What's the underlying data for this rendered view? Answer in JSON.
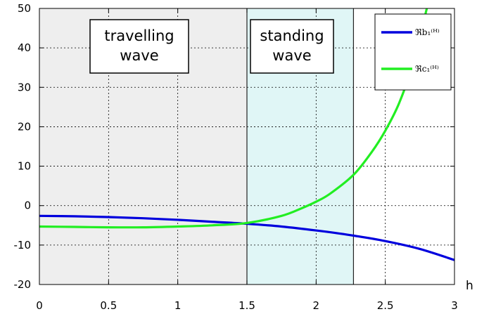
{
  "chart_data": {
    "type": "line",
    "xlabel": "h",
    "ylabel": "",
    "xlim": [
      0,
      3
    ],
    "ylim": [
      -20,
      50
    ],
    "xticks": [
      "0",
      "0.5",
      "1",
      "1.5",
      "2",
      "2.5",
      "3"
    ],
    "yticks": [
      "-20",
      "-10",
      "0",
      "10",
      "20",
      "30",
      "40",
      "50"
    ],
    "grid": true,
    "legend_position": "top-right",
    "regions": [
      {
        "label_lines": [
          "travelling",
          "wave"
        ],
        "x": [
          0,
          1.5
        ],
        "color": "#eeeeee"
      },
      {
        "label_lines": [
          "standing",
          "wave"
        ],
        "x": [
          1.5,
          2.27
        ],
        "color": "#e0f6f6"
      }
    ],
    "series": [
      {
        "name": "ℜb₁⁽ᴴ⁾",
        "color": "#0000dd",
        "x": [
          0,
          0.25,
          0.5,
          0.75,
          1.0,
          1.25,
          1.5,
          1.75,
          2.0,
          2.25,
          2.5,
          2.75,
          3.0
        ],
        "y": [
          -2.6,
          -2.7,
          -2.9,
          -3.2,
          -3.6,
          -4.1,
          -4.6,
          -5.3,
          -6.3,
          -7.5,
          -9.0,
          -11.0,
          -13.8
        ]
      },
      {
        "name": "ℜc₁⁽ᴴ⁾",
        "color": "#22ee22",
        "x": [
          0,
          0.25,
          0.5,
          0.75,
          1.0,
          1.25,
          1.5,
          1.75,
          1.9,
          2.0,
          2.1,
          2.27,
          2.4,
          2.5,
          2.6,
          2.7,
          2.8
        ],
        "y": [
          -5.3,
          -5.4,
          -5.5,
          -5.5,
          -5.3,
          -5.0,
          -4.4,
          -2.6,
          -0.6,
          1.0,
          3.0,
          7.8,
          13.5,
          19.0,
          26.0,
          36.0,
          50.0
        ]
      }
    ]
  }
}
